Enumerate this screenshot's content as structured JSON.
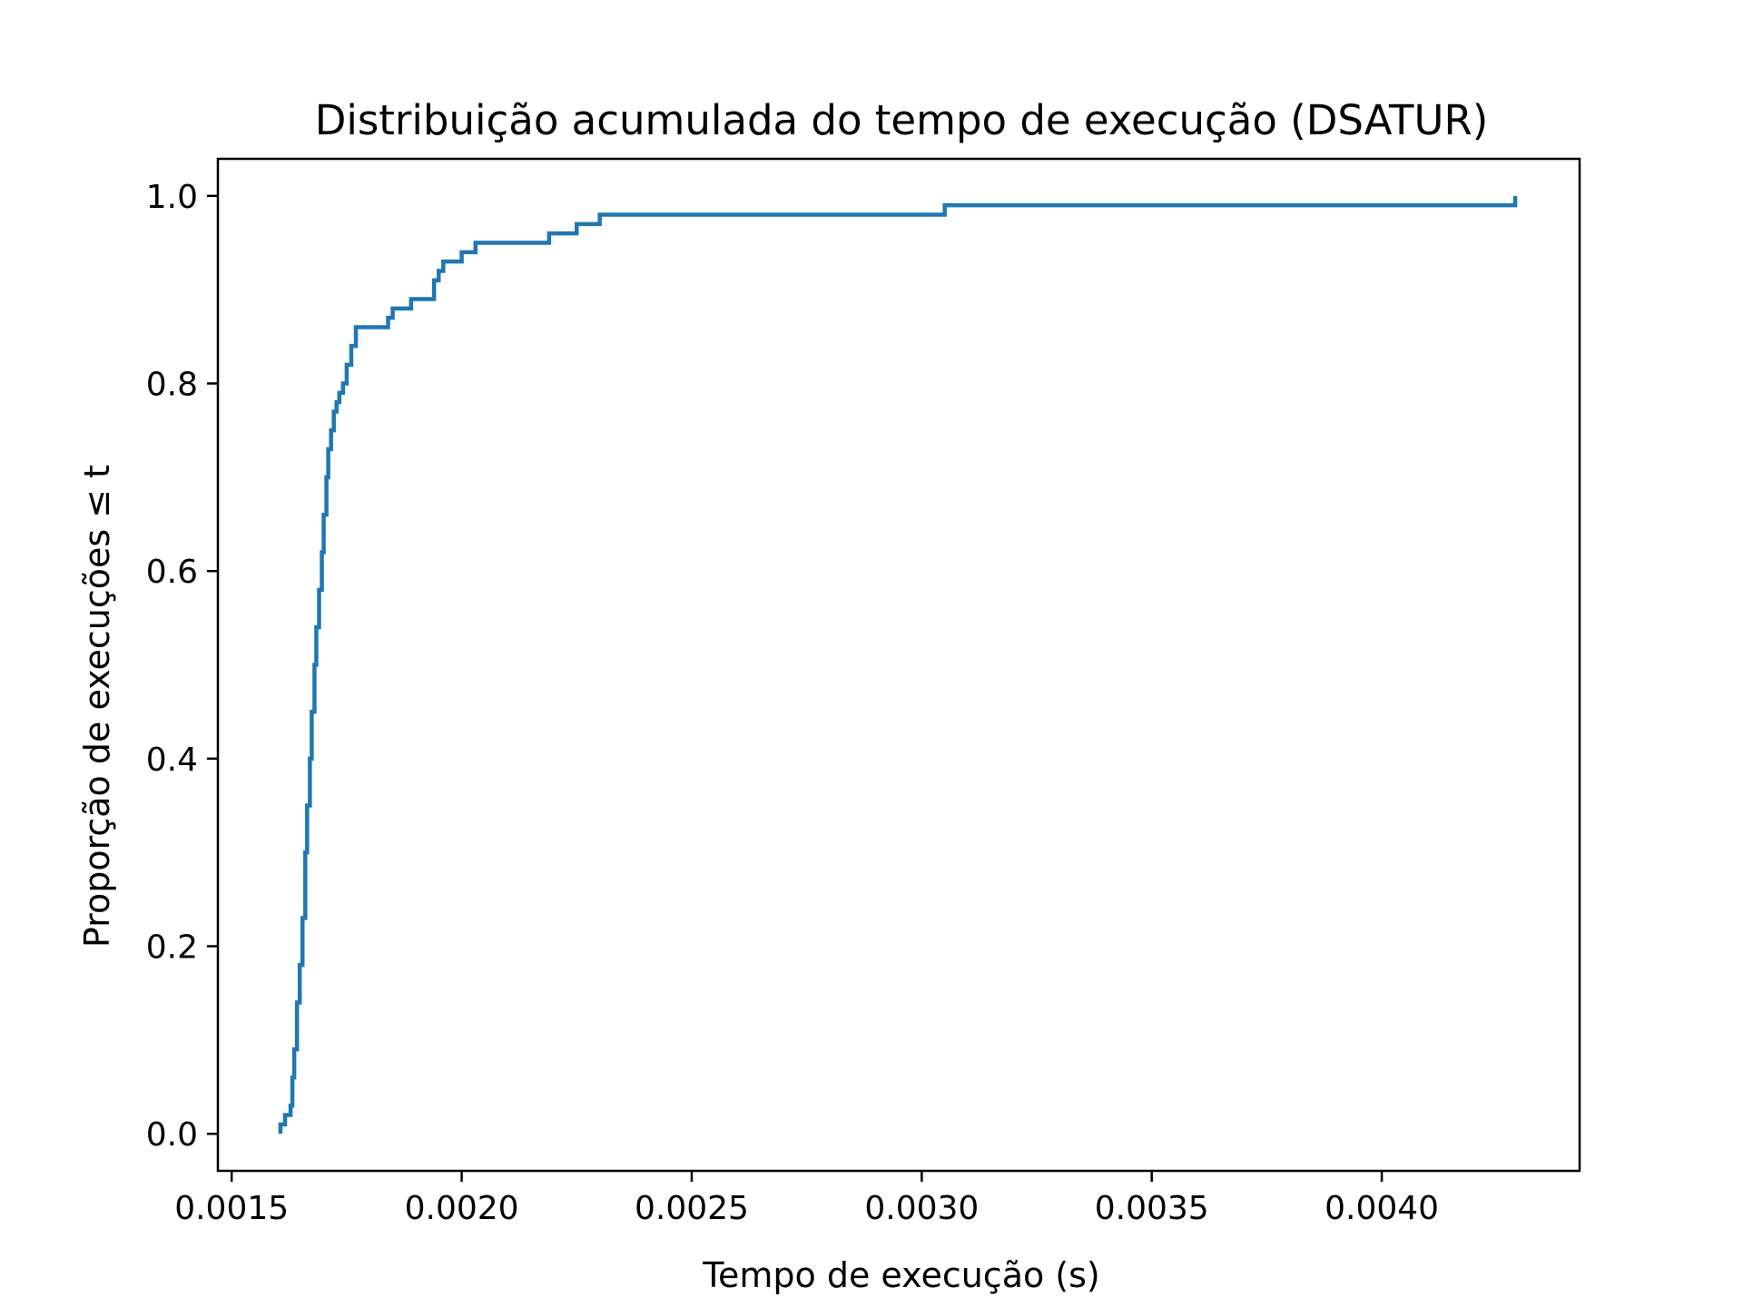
{
  "chart_data": {
    "type": "line",
    "step": true,
    "title": "Distribuição acumulada do tempo de execução (DSATUR)",
    "xlabel": "Tempo de execução (s)",
    "ylabel": "Proporção de execuções ≤ t",
    "xlim": [
      0.00147,
      0.00443
    ],
    "ylim": [
      -0.0395,
      1.0395
    ],
    "x_ticks": [
      0.0015,
      0.002,
      0.0025,
      0.003,
      0.0035,
      0.004
    ],
    "x_tick_labels": [
      "0.0015",
      "0.0020",
      "0.0025",
      "0.0030",
      "0.0035",
      "0.0040"
    ],
    "y_ticks": [
      0.0,
      0.2,
      0.4,
      0.6,
      0.8,
      1.0
    ],
    "y_tick_labels": [
      "0.0",
      "0.2",
      "0.4",
      "0.6",
      "0.8",
      "1.0"
    ],
    "grid": false,
    "legend": "none",
    "series": [
      {
        "color": "#1f77b4",
        "x": [
          0.001606,
          0.001616,
          0.001628,
          0.001632,
          0.001636,
          0.001642,
          0.001648,
          0.001654,
          0.00166,
          0.001664,
          0.00167,
          0.001674,
          0.00168,
          0.001684,
          0.00169,
          0.001696,
          0.0017,
          0.001706,
          0.00171,
          0.001716,
          0.001722,
          0.001728,
          0.001734,
          0.001742,
          0.00175,
          0.00176,
          0.00177,
          0.001778,
          0.001788,
          0.00184,
          0.00185,
          0.00189,
          0.00194,
          0.00195,
          0.00196,
          0.002,
          0.00203,
          0.00219,
          0.00225,
          0.0023,
          0.00305,
          0.00429
        ],
        "y": [
          0.01,
          0.02,
          0.03,
          0.06,
          0.09,
          0.14,
          0.18,
          0.23,
          0.3,
          0.35,
          0.4,
          0.45,
          0.5,
          0.54,
          0.58,
          0.62,
          0.66,
          0.7,
          0.73,
          0.75,
          0.77,
          0.78,
          0.79,
          0.8,
          0.82,
          0.84,
          0.86,
          0.86,
          0.86,
          0.87,
          0.88,
          0.89,
          0.91,
          0.92,
          0.93,
          0.94,
          0.95,
          0.96,
          0.97,
          0.98,
          0.99,
          1.0
        ]
      }
    ]
  }
}
